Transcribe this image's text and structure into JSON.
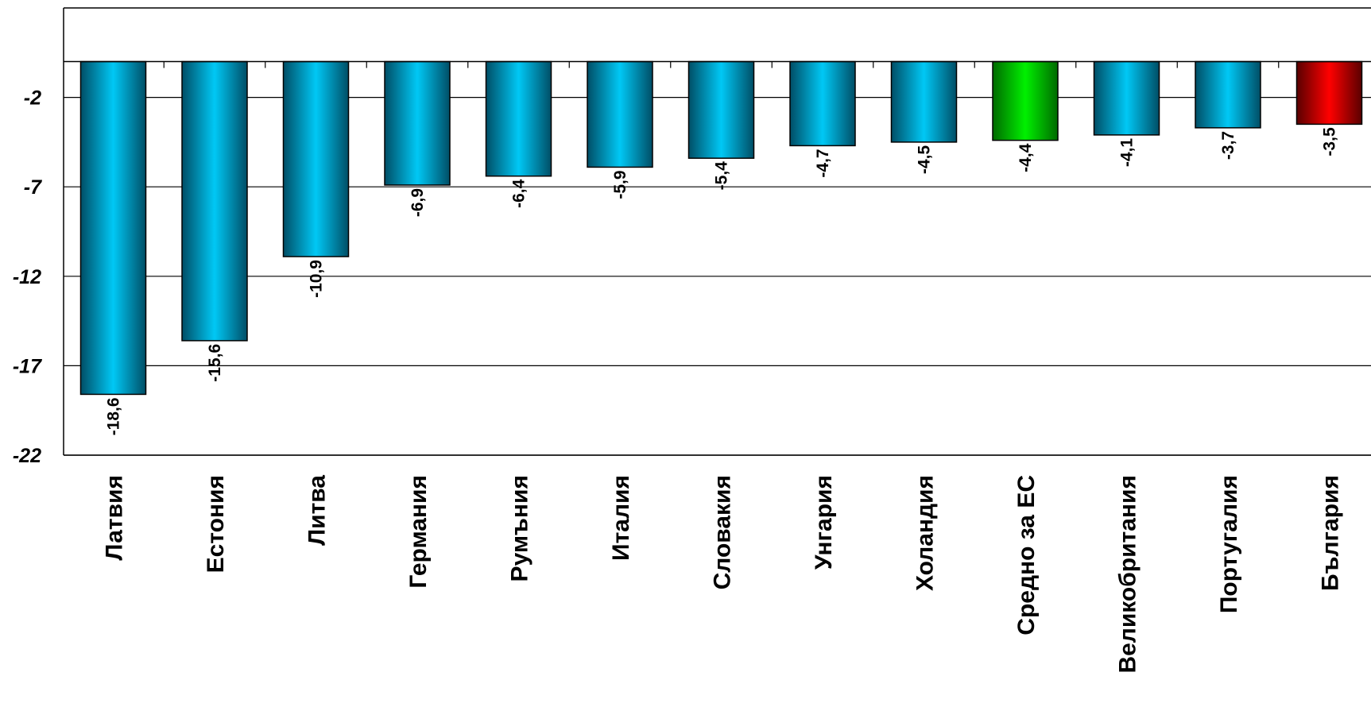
{
  "chart_data": {
    "type": "bar",
    "title": "",
    "xlabel": "",
    "ylabel": "",
    "ylim": [
      -22,
      3
    ],
    "yticks": [
      "-2",
      "-7",
      "-12",
      "-17",
      "-22"
    ],
    "grid": true,
    "colors": {
      "default": "#00c3f0",
      "highlight_eu": "#00e600",
      "highlight_bg": "#e00000"
    },
    "categories": [
      "Латвия",
      "Естония",
      "Литва",
      "Германия",
      "Румъния",
      "Италия",
      "Словакия",
      "Унгария",
      "Холандия",
      "Средно за ЕС",
      "Великобритания",
      "Португалия",
      "България"
    ],
    "values": [
      -18.6,
      -15.6,
      -10.9,
      -6.9,
      -6.4,
      -5.9,
      -5.4,
      -4.7,
      -4.5,
      -4.4,
      -4.1,
      -3.7,
      -3.5
    ],
    "value_labels": [
      "-18,6",
      "-15,6",
      "-10,9",
      "-6,9",
      "-6,4",
      "-5,9",
      "-5,4",
      "-4,7",
      "-4,5",
      "-4,4",
      "-4,1",
      "-3,7",
      "-3,5"
    ],
    "bar_colors": [
      "default",
      "default",
      "default",
      "default",
      "default",
      "default",
      "default",
      "default",
      "default",
      "highlight_eu",
      "default",
      "default",
      "highlight_bg"
    ]
  }
}
